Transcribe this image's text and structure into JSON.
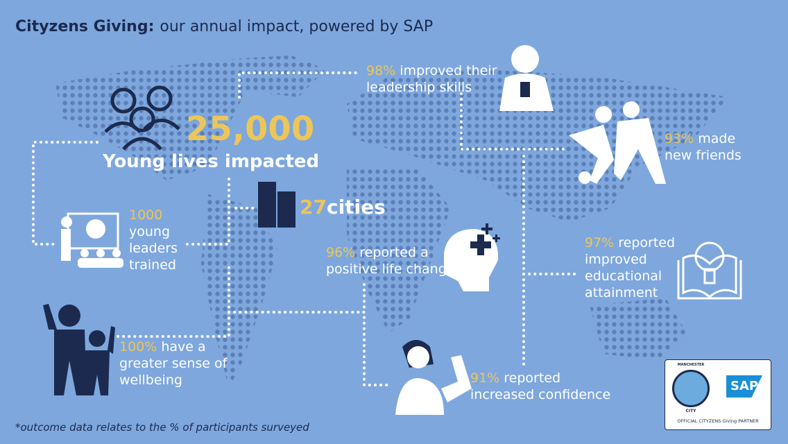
{
  "title": {
    "brand": "Cityzens Giving:",
    "rest": "our annual impact, powered by SAP"
  },
  "headline": {
    "value": "25,000",
    "label": "Young lives impacted"
  },
  "cities": {
    "value": "27",
    "label": "cities"
  },
  "stats": [
    {
      "value": "1000",
      "lines": [
        "young",
        "leaders",
        "trained"
      ]
    },
    {
      "value": "98%",
      "lines": [
        "improved their",
        "leadership skills"
      ]
    },
    {
      "value": "93%",
      "lines": [
        "made",
        "new friends"
      ]
    },
    {
      "value": "96%",
      "lines": [
        "reported a",
        "positive life change"
      ]
    },
    {
      "value": "97%",
      "lines": [
        "reported",
        "improved",
        "educational",
        "attainment"
      ]
    },
    {
      "value": "100%",
      "lines": [
        "have a",
        "greater sense of",
        "wellbeing"
      ]
    },
    {
      "value": "91%",
      "lines": [
        "reported",
        "increased confidence"
      ]
    }
  ],
  "footnote": "*outcome data relates to the % of participants surveyed",
  "logo": {
    "top": "MANCHESTER",
    "bottom": "CITY",
    "sap": "SAP",
    "partner": "OFFICIAL CITYZENS Giving PARTNER"
  }
}
